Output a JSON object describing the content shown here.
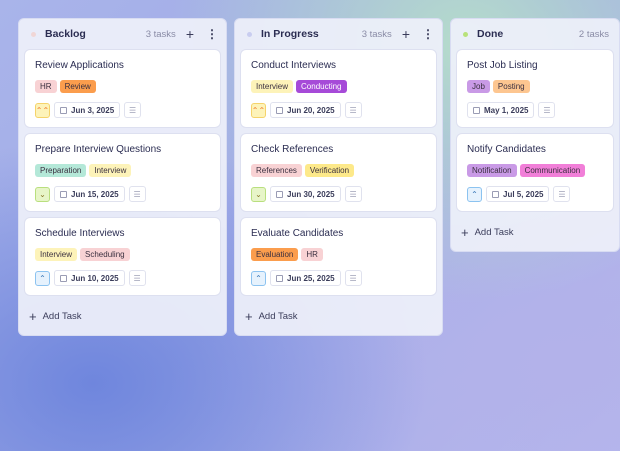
{
  "columns": [
    {
      "title": "Backlog",
      "count": "3 tasks",
      "dot": "#f0d6d6",
      "add_label": "Add Task",
      "cards": [
        {
          "title": "Review Applications",
          "tags": [
            {
              "label": "HR",
              "bg": "#f8d2d4"
            },
            {
              "label": "Review",
              "bg": "#fb9d4d"
            }
          ],
          "priority": "urgent",
          "date": "Jun 3, 2025"
        },
        {
          "title": "Prepare Interview Questions",
          "tags": [
            {
              "label": "Preparation",
              "bg": "#b4e8d8"
            },
            {
              "label": "Interview",
              "bg": "#fdf3b9"
            }
          ],
          "priority": "low",
          "date": "Jun 15, 2025"
        },
        {
          "title": "Schedule Interviews",
          "tags": [
            {
              "label": "Interview",
              "bg": "#fdf3b9"
            },
            {
              "label": "Scheduling",
              "bg": "#f8d2d4"
            }
          ],
          "priority": "medium",
          "date": "Jun 10, 2025"
        }
      ]
    },
    {
      "title": "In Progress",
      "count": "3 tasks",
      "dot": "#c9cdf0",
      "add_label": "Add Task",
      "cards": [
        {
          "title": "Conduct Interviews",
          "tags": [
            {
              "label": "Interview",
              "bg": "#fdf3b9"
            },
            {
              "label": "Conducting",
              "bg": "#a64ad8",
              "fg": "#fff"
            }
          ],
          "priority": "urgent",
          "date": "Jun 20, 2025"
        },
        {
          "title": "Check References",
          "tags": [
            {
              "label": "References",
              "bg": "#f8d2d4"
            },
            {
              "label": "Verification",
              "bg": "#fde98a"
            }
          ],
          "priority": "low",
          "date": "Jun 30, 2025"
        },
        {
          "title": "Evaluate Candidates",
          "tags": [
            {
              "label": "Evaluation",
              "bg": "#fb9d4d"
            },
            {
              "label": "HR",
              "bg": "#f8d2d4"
            }
          ],
          "priority": "medium",
          "date": "Jun 25, 2025"
        }
      ]
    },
    {
      "title": "Done",
      "count": "2 tasks",
      "dot": "#b8e27a",
      "add_label": "Add Task",
      "cards": [
        {
          "title": "Post Job Listing",
          "tags": [
            {
              "label": "Job",
              "bg": "#c99ae6"
            },
            {
              "label": "Posting",
              "bg": "#fdc690"
            }
          ],
          "priority": null,
          "date": "May 1, 2025"
        },
        {
          "title": "Notify Candidates",
          "tags": [
            {
              "label": "Notification",
              "bg": "#c99ae6"
            },
            {
              "label": "Communication",
              "bg": "#f17fd8"
            }
          ],
          "priority": "medium",
          "date": "Jul 5, 2025"
        }
      ]
    }
  ],
  "priority_styles": {
    "urgent": {
      "glyph": "⌃⌃",
      "bg": "#fdf3b9",
      "border": "#f5d36a",
      "fg": "#f07a2a"
    },
    "low": {
      "glyph": "⌄",
      "bg": "#e7f5c8",
      "border": "#b9df7e",
      "fg": "#8a7a2a"
    },
    "medium": {
      "glyph": "⌃",
      "bg": "#e6f2fd",
      "border": "#8cc3f0",
      "fg": "#3a78b8"
    }
  }
}
